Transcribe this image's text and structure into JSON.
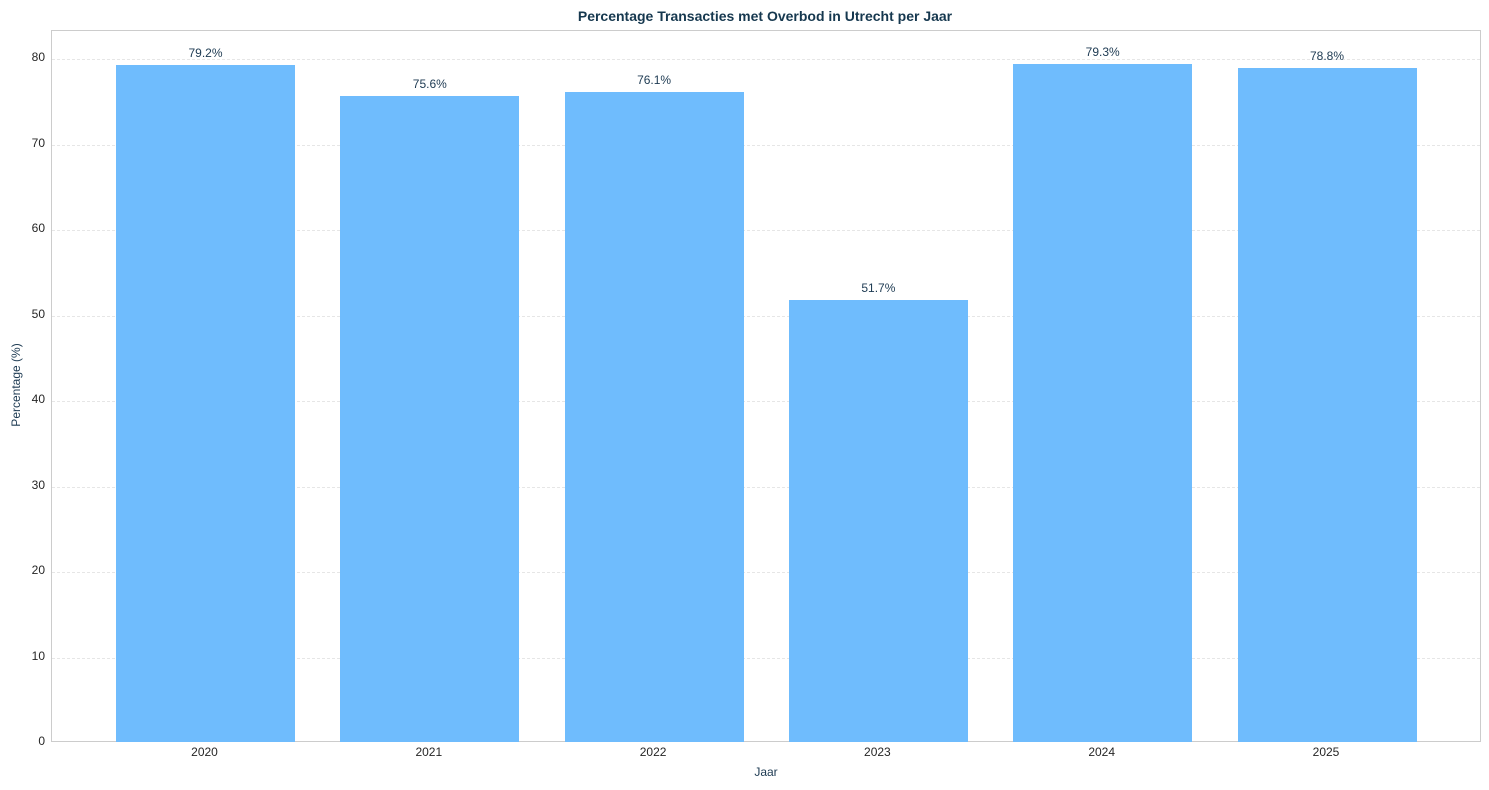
{
  "chart_data": {
    "type": "bar",
    "title": "Percentage Transacties met Overbod in Utrecht per Jaar",
    "xlabel": "Jaar",
    "ylabel": "Percentage (%)",
    "categories": [
      "2020",
      "2021",
      "2022",
      "2023",
      "2024",
      "2025"
    ],
    "values": [
      79.2,
      75.6,
      76.1,
      51.7,
      79.3,
      78.8
    ],
    "value_labels": [
      "79.2%",
      "75.6%",
      "76.1%",
      "51.7%",
      "79.3%",
      "78.8%"
    ],
    "yticks": [
      "0",
      "10",
      "20",
      "30",
      "40",
      "50",
      "60",
      "70",
      "80"
    ],
    "ylim": [
      0,
      83.3
    ],
    "grid": "y dashed",
    "bar_color": "#6fbcfd",
    "legend": null
  }
}
